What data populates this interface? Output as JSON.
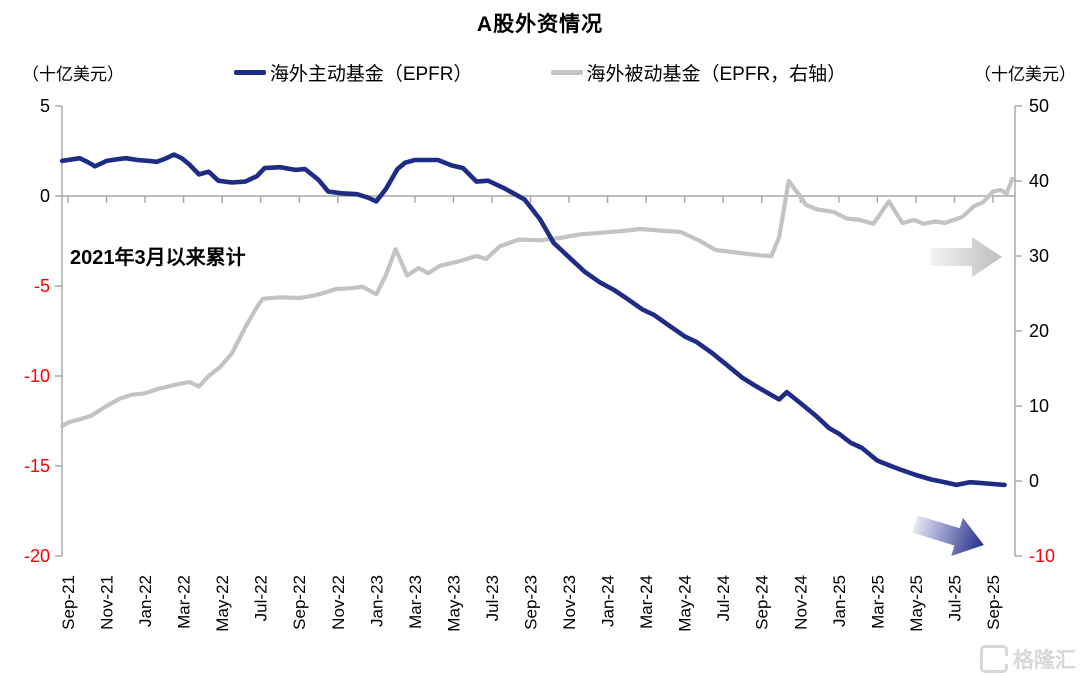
{
  "title": "A股外资情况",
  "header": {
    "left_unit": "（十亿美元）",
    "right_unit": "（十亿美元）"
  },
  "legend": [
    {
      "label": "海外主动基金（EPFR）",
      "color": "#1F2C86"
    },
    {
      "label": "海外被动基金（EPFR，右轴）",
      "color": "#C3C3C3"
    }
  ],
  "annotation": "2021年3月以来累计",
  "watermark": "格隆汇",
  "colors": {
    "active_line": "#1F2C86",
    "passive_line": "#C3C3C3",
    "axis": "#A6A6A6",
    "negative_tick_label": "#FF0000",
    "tick_label": "#000000",
    "watermark": "#D7D7D7"
  },
  "chart_data": {
    "type": "line",
    "title": "A股外资情况",
    "x_unit": "months_since_Sep-2021",
    "x_tick_months": [
      0,
      2,
      4,
      6,
      8,
      10,
      12,
      14,
      16,
      18,
      20,
      22,
      24,
      26,
      28,
      30,
      32,
      34,
      36,
      38,
      40,
      42,
      44,
      46,
      48
    ],
    "x_tick_labels": [
      "Sep-21",
      "Nov-21",
      "Jan-22",
      "Mar-22",
      "May-22",
      "Jul-22",
      "Sep-22",
      "Nov-22",
      "Jan-23",
      "Mar-23",
      "May-23",
      "Jul-23",
      "Sep-23",
      "Nov-23",
      "Jan-24",
      "Mar-24",
      "May-24",
      "Jul-24",
      "Sep-24",
      "Nov-24",
      "Jan-25",
      "Mar-25",
      "May-25",
      "Jul-25",
      "Sep-25"
    ],
    "left_axis": {
      "label": "（十亿美元）",
      "min": -20,
      "max": 5,
      "ticks": [
        5,
        0,
        -5,
        -10,
        -15,
        -20
      ]
    },
    "right_axis": {
      "label": "（十亿美元）",
      "min": -10,
      "max": 50,
      "ticks": [
        50,
        40,
        30,
        20,
        10,
        0,
        -10
      ]
    },
    "grid": "zero-line-only",
    "legend_position": "top",
    "series": [
      {
        "name": "海外主动基金（EPFR）",
        "axis": "left",
        "color": "#1F2C86",
        "width": 4.6,
        "points": [
          [
            -0.3,
            1.95
          ],
          [
            0,
            2.0
          ],
          [
            0.6,
            2.1
          ],
          [
            1.0,
            1.9
          ],
          [
            1.4,
            1.65
          ],
          [
            2,
            1.95
          ],
          [
            2.6,
            2.05
          ],
          [
            3,
            2.1
          ],
          [
            3.6,
            2.0
          ],
          [
            4.2,
            1.95
          ],
          [
            4.6,
            1.9
          ],
          [
            5,
            2.05
          ],
          [
            5.5,
            2.3
          ],
          [
            5.9,
            2.1
          ],
          [
            6.3,
            1.75
          ],
          [
            6.8,
            1.2
          ],
          [
            7.3,
            1.35
          ],
          [
            7.8,
            0.85
          ],
          [
            8.5,
            0.75
          ],
          [
            9.2,
            0.8
          ],
          [
            9.8,
            1.1
          ],
          [
            10.2,
            1.55
          ],
          [
            11,
            1.6
          ],
          [
            11.8,
            1.45
          ],
          [
            12.3,
            1.5
          ],
          [
            13,
            0.9
          ],
          [
            13.5,
            0.25
          ],
          [
            14.2,
            0.15
          ],
          [
            15.0,
            0.1
          ],
          [
            15.6,
            -0.1
          ],
          [
            16.0,
            -0.3
          ],
          [
            16.5,
            0.4
          ],
          [
            17.1,
            1.5
          ],
          [
            17.5,
            1.85
          ],
          [
            18.0,
            2.0
          ],
          [
            19.2,
            2.0
          ],
          [
            19.9,
            1.7
          ],
          [
            20.5,
            1.55
          ],
          [
            21.2,
            0.8
          ],
          [
            21.8,
            0.85
          ],
          [
            22.6,
            0.45
          ],
          [
            23.2,
            0.1
          ],
          [
            23.7,
            -0.2
          ],
          [
            24.5,
            -1.3
          ],
          [
            25.2,
            -2.6
          ],
          [
            25.9,
            -3.3
          ],
          [
            26.8,
            -4.2
          ],
          [
            27.6,
            -4.8
          ],
          [
            28.3,
            -5.2
          ],
          [
            29,
            -5.7
          ],
          [
            29.8,
            -6.3
          ],
          [
            30.4,
            -6.6
          ],
          [
            31.2,
            -7.2
          ],
          [
            32,
            -7.8
          ],
          [
            32.6,
            -8.1
          ],
          [
            33.4,
            -8.7
          ],
          [
            34.2,
            -9.4
          ],
          [
            35,
            -10.1
          ],
          [
            35.6,
            -10.5
          ],
          [
            36.4,
            -11.0
          ],
          [
            36.9,
            -11.3
          ],
          [
            37.3,
            -10.9
          ],
          [
            38,
            -11.5
          ],
          [
            38.8,
            -12.2
          ],
          [
            39.5,
            -12.9
          ],
          [
            40,
            -13.2
          ],
          [
            40.6,
            -13.7
          ],
          [
            41.2,
            -14.0
          ],
          [
            42,
            -14.7
          ],
          [
            42.7,
            -15.0
          ],
          [
            43.2,
            -15.2
          ],
          [
            44,
            -15.5
          ],
          [
            44.8,
            -15.75
          ],
          [
            45.5,
            -15.9
          ],
          [
            46.1,
            -16.05
          ],
          [
            46.8,
            -15.9
          ],
          [
            47.4,
            -15.95
          ],
          [
            48,
            -16.0
          ],
          [
            48.6,
            -16.05
          ]
        ]
      },
      {
        "name": "海外被动基金（EPFR，右轴）",
        "axis": "right",
        "color": "#C3C3C3",
        "width": 4.2,
        "points": [
          [
            -0.3,
            7.3
          ],
          [
            0,
            7.8
          ],
          [
            0.7,
            8.3
          ],
          [
            1.2,
            8.7
          ],
          [
            2,
            10.0
          ],
          [
            2.7,
            11.0
          ],
          [
            3.3,
            11.5
          ],
          [
            4,
            11.7
          ],
          [
            4.7,
            12.3
          ],
          [
            5.5,
            12.8
          ],
          [
            6.3,
            13.2
          ],
          [
            6.8,
            12.6
          ],
          [
            7.3,
            14.0
          ],
          [
            7.9,
            15.2
          ],
          [
            8.5,
            17.0
          ],
          [
            9.2,
            20.5
          ],
          [
            9.8,
            23.2
          ],
          [
            10.1,
            24.3
          ],
          [
            11,
            24.5
          ],
          [
            12,
            24.4
          ],
          [
            12.7,
            24.7
          ],
          [
            13.3,
            25.1
          ],
          [
            13.9,
            25.6
          ],
          [
            14.6,
            25.7
          ],
          [
            15.3,
            25.9
          ],
          [
            16.0,
            24.9
          ],
          [
            16.5,
            27.5
          ],
          [
            17.0,
            30.9
          ],
          [
            17.6,
            27.4
          ],
          [
            18.2,
            28.4
          ],
          [
            18.7,
            27.7
          ],
          [
            19.3,
            28.7
          ],
          [
            20.3,
            29.3
          ],
          [
            21.2,
            30.0
          ],
          [
            21.7,
            29.6
          ],
          [
            22.4,
            31.3
          ],
          [
            23.4,
            32.2
          ],
          [
            24.5,
            32.1
          ],
          [
            25.5,
            32.4
          ],
          [
            26.6,
            32.9
          ],
          [
            27.6,
            33.1
          ],
          [
            28.6,
            33.3
          ],
          [
            29.7,
            33.6
          ],
          [
            30.7,
            33.4
          ],
          [
            31.8,
            33.2
          ],
          [
            32.8,
            32.0
          ],
          [
            33.6,
            30.8
          ],
          [
            34.6,
            30.5
          ],
          [
            35.9,
            30.1
          ],
          [
            36.5,
            30.0
          ],
          [
            36.9,
            32.5
          ],
          [
            37.4,
            40.0
          ],
          [
            37.9,
            38.3
          ],
          [
            38.3,
            36.8
          ],
          [
            38.9,
            36.2
          ],
          [
            39.7,
            35.9
          ],
          [
            40.4,
            35.0
          ],
          [
            41.1,
            34.8
          ],
          [
            41.8,
            34.3
          ],
          [
            42.6,
            37.3
          ],
          [
            43.3,
            34.4
          ],
          [
            43.9,
            34.8
          ],
          [
            44.4,
            34.3
          ],
          [
            45.0,
            34.6
          ],
          [
            45.5,
            34.4
          ],
          [
            46.4,
            35.2
          ],
          [
            47.0,
            36.6
          ],
          [
            47.5,
            37.2
          ],
          [
            48.0,
            38.6
          ],
          [
            48.4,
            38.8
          ],
          [
            48.7,
            38.3
          ],
          [
            49.0,
            40.3
          ]
        ]
      }
    ],
    "annotations": [
      {
        "text": "2021年3月以来累计",
        "position": "upper-left"
      }
    ]
  }
}
